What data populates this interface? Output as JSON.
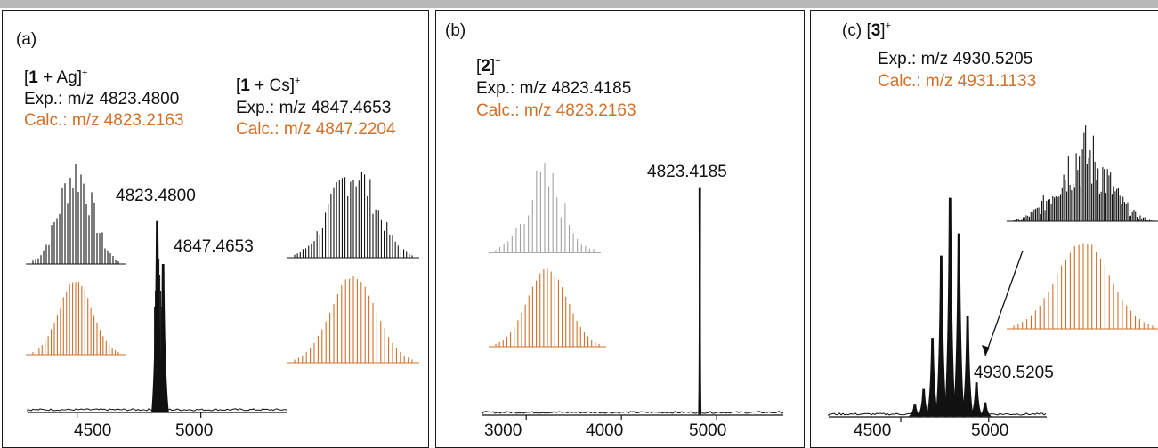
{
  "colors": {
    "experimental": "#111111",
    "calculated": "#d0702a",
    "frame": "#1a1a1a"
  },
  "chart_data": [
    {
      "panel": "(a)",
      "type": "line",
      "species": [
        {
          "bracket_open": "[",
          "compound": "1",
          "adduct": " + Ag]",
          "charge": "+",
          "exp_label": "Exp.: m/z 4823.4800",
          "calc_label": "Calc.: m/z 4823.2163"
        },
        {
          "bracket_open": "[",
          "compound": "1",
          "adduct": " + Cs]",
          "charge": "+",
          "exp_label": "Exp.: m/z 4847.4653",
          "calc_label": "Calc.: m/z 4847.2204"
        }
      ],
      "peaks": [
        {
          "x": 4823.48,
          "y": 0.93,
          "label": "4823.4800"
        },
        {
          "x": 4847.4653,
          "y": 0.72,
          "label": "4847.4653"
        }
      ],
      "xlim": [
        4300,
        5350
      ],
      "xticks": [
        4500,
        5000
      ],
      "xticklabels": [
        "4500",
        "5000"
      ]
    },
    {
      "panel": "(b)",
      "type": "line",
      "species": [
        {
          "bracket_open": "[",
          "compound": "2",
          "adduct": "]",
          "charge": "+",
          "exp_label": "Exp.: m/z 4823.4185",
          "calc_label": "Calc.: m/z 4823.2163"
        }
      ],
      "peaks": [
        {
          "x": 4823.4185,
          "y": 1.0,
          "label": "4823.4185"
        }
      ],
      "xlim": [
        2540,
        5700
      ],
      "xticks": [
        3000,
        4000,
        5000
      ],
      "xticklabels": [
        "3000",
        "4000",
        "5000"
      ]
    },
    {
      "panel": "(c)",
      "type": "line",
      "species": [
        {
          "bracket_open": "[",
          "compound": "3",
          "adduct": "]",
          "charge": "+",
          "exp_label": "Exp.: m/z 4930.5205",
          "calc_label": "Calc.: m/z 4931.1133"
        }
      ],
      "peaks": [
        {
          "x": 4580,
          "y": 0.05
        },
        {
          "x": 4630,
          "y": 0.12
        },
        {
          "x": 4680,
          "y": 0.35
        },
        {
          "x": 4730,
          "y": 0.72
        },
        {
          "x": 4780,
          "y": 0.98
        },
        {
          "x": 4830,
          "y": 0.82
        },
        {
          "x": 4880,
          "y": 0.45
        },
        {
          "x": 4930.5205,
          "y": 0.15,
          "label": "4930.5205"
        },
        {
          "x": 4980,
          "y": 0.06
        }
      ],
      "xlim": [
        4090,
        5330
      ],
      "xticks": [
        4500,
        5000
      ],
      "xticklabels": [
        "4500",
        "5000"
      ]
    }
  ]
}
